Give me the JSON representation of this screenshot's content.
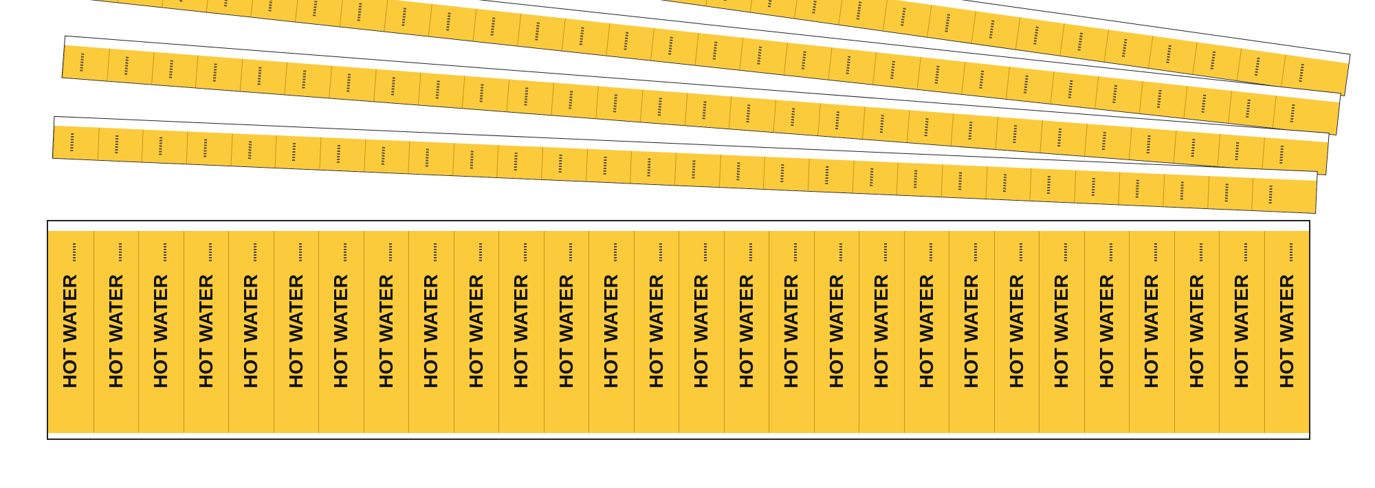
{
  "product": {
    "marker_color": "#fccb3c",
    "legend_color": "#111111",
    "sheet_border_color": "#222222",
    "front_sheet": {
      "markers": [
        {
          "legend": "HOT WATER"
        },
        {
          "legend": "HOT WATER"
        },
        {
          "legend": "HOT WATER"
        },
        {
          "legend": "HOT WATER"
        },
        {
          "legend": "HOT WATER"
        },
        {
          "legend": "HOT WATER"
        },
        {
          "legend": "HOT WATER"
        },
        {
          "legend": "HOT WATER"
        },
        {
          "legend": "HOT WATER"
        },
        {
          "legend": "HOT WATER"
        },
        {
          "legend": "HOT WATER"
        },
        {
          "legend": "HOT WATER"
        },
        {
          "legend": "HOT WATER"
        },
        {
          "legend": "HOT WATER"
        },
        {
          "legend": "HOT WATER"
        },
        {
          "legend": "HOT WATER"
        },
        {
          "legend": "HOT WATER"
        },
        {
          "legend": "HOT WATER"
        },
        {
          "legend": "HOT WATER"
        },
        {
          "legend": "HOT WATER"
        },
        {
          "legend": "HOT WATER"
        },
        {
          "legend": "HOT WATER"
        },
        {
          "legend": "HOT WATER"
        },
        {
          "legend": "HOT WATER"
        },
        {
          "legend": "HOT WATER"
        },
        {
          "legend": "HOT WATER"
        },
        {
          "legend": "HOT WATER"
        },
        {
          "legend": "HOT WATER"
        }
      ]
    },
    "fanned_sheets": [
      {
        "name": "sheet-back-1"
      },
      {
        "name": "sheet-back-2"
      },
      {
        "name": "sheet-back-3"
      },
      {
        "name": "sheet-back-4"
      }
    ]
  }
}
